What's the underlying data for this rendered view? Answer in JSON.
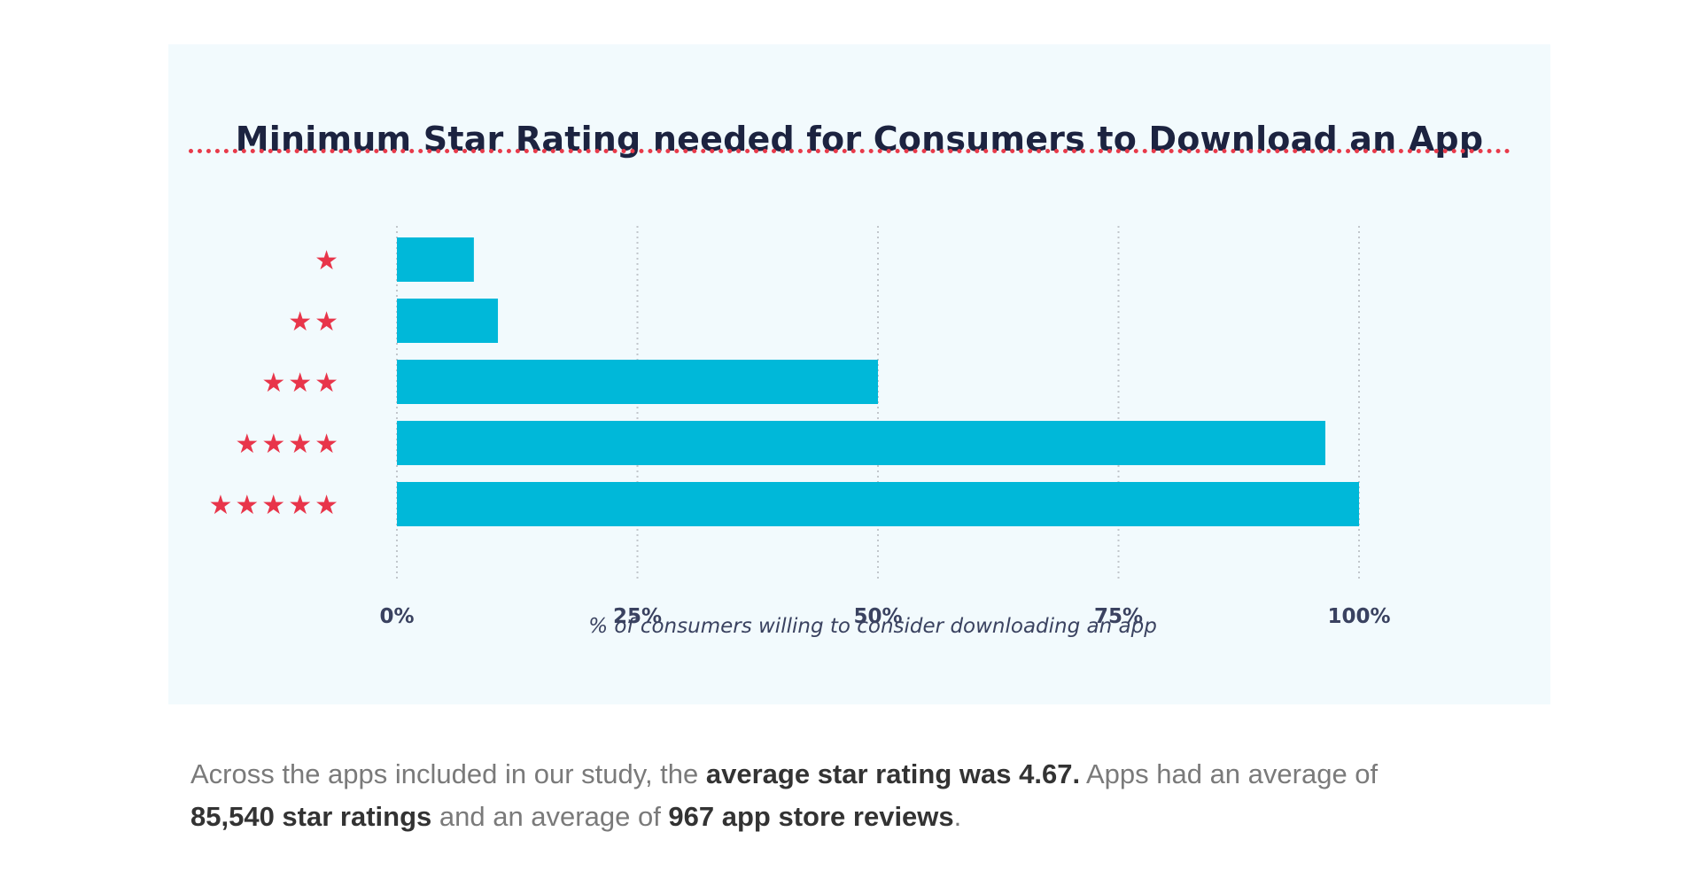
{
  "colors": {
    "bar": "#00b8d9",
    "star": "#e8354a",
    "title": "#1c2340",
    "divider": "#e83a4a",
    "card_background": "#f2fafd",
    "grid": "#c2c7cc"
  },
  "chart_data": {
    "type": "bar",
    "orientation": "horizontal",
    "title": "Minimum Star Rating needed for Consumers to Download an App",
    "categories": [
      "★",
      "★★",
      "★★★",
      "★★★★",
      "★★★★★"
    ],
    "values": [
      8,
      10.5,
      50,
      96.5,
      100
    ],
    "xlabel": "% of consumers willing to consider downloading an app",
    "ylabel": "",
    "xlim": [
      0,
      100
    ],
    "x_ticks": [
      "0%",
      "25%",
      "50%",
      "75%",
      "100%"
    ],
    "grid": "vertical dotted",
    "legend": "none"
  },
  "caption": {
    "text1": "Across the apps included in our study, the ",
    "bold1": "average star rating was 4.67.",
    "text2": " Apps had an average of ",
    "bold2": "85,540 star ratings",
    "text3": " and an average of ",
    "bold3": "967 app store reviews",
    "text4": "."
  }
}
